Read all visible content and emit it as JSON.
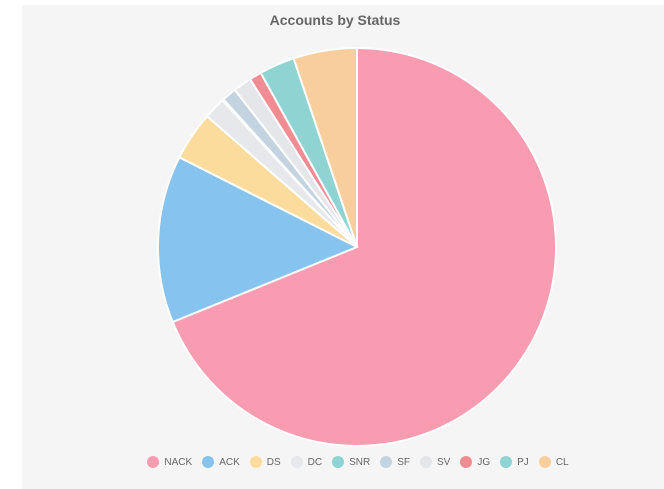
{
  "chart_data": {
    "type": "pie",
    "title": "Accounts by Status",
    "legend_position": "bottom",
    "slices": [
      {
        "label": "NACK",
        "value": 69.4,
        "color": "#f99cb1"
      },
      {
        "label": "ACK",
        "value": 13.7,
        "color": "#86c3ef"
      },
      {
        "label": "DS",
        "value": 4.0,
        "color": "#fcdc9c"
      },
      {
        "label": "DC",
        "value": 1.8,
        "color": "#e7e8ec"
      },
      {
        "label": "SNR",
        "value": 0.1,
        "color": "#8fd4d2"
      },
      {
        "label": "SF",
        "value": 1.2,
        "color": "#c3d3df"
      },
      {
        "label": "SV",
        "value": 1.5,
        "color": "#e5e6ea"
      },
      {
        "label": "JG",
        "value": 1.0,
        "color": "#f18c93"
      },
      {
        "label": "PJ",
        "value": 2.9,
        "color": "#8fd4d2"
      },
      {
        "label": "CL",
        "value": 5.2,
        "color": "#f8cf9c"
      }
    ]
  }
}
